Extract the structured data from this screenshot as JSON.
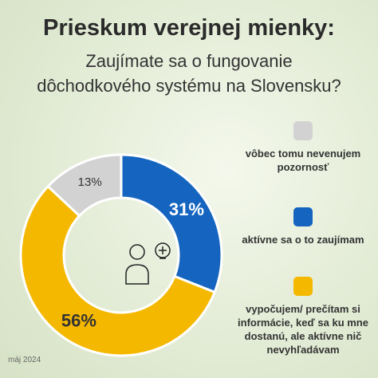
{
  "chart_data": {
    "type": "donut",
    "title": "Prieskum verejnej mienky:",
    "subtitle": [
      "Zaujímate sa o fungovanie",
      "dôchodkového systému na Slovensku?"
    ],
    "categories": [
      "vôbec tomu nevenujem pozornosť",
      "aktívne sa o to zaujímam",
      "vypočujem/ prečítam si informácie, keď sa ku mne dostanú, ale aktívne nič nevyhľadávam"
    ],
    "values": [
      13,
      31,
      56
    ],
    "value_labels": [
      "13%",
      "31%",
      "56%"
    ],
    "colors": [
      "#d2d2d2",
      "#1565c0",
      "#f5b800"
    ],
    "footnote": "máj 2024"
  }
}
